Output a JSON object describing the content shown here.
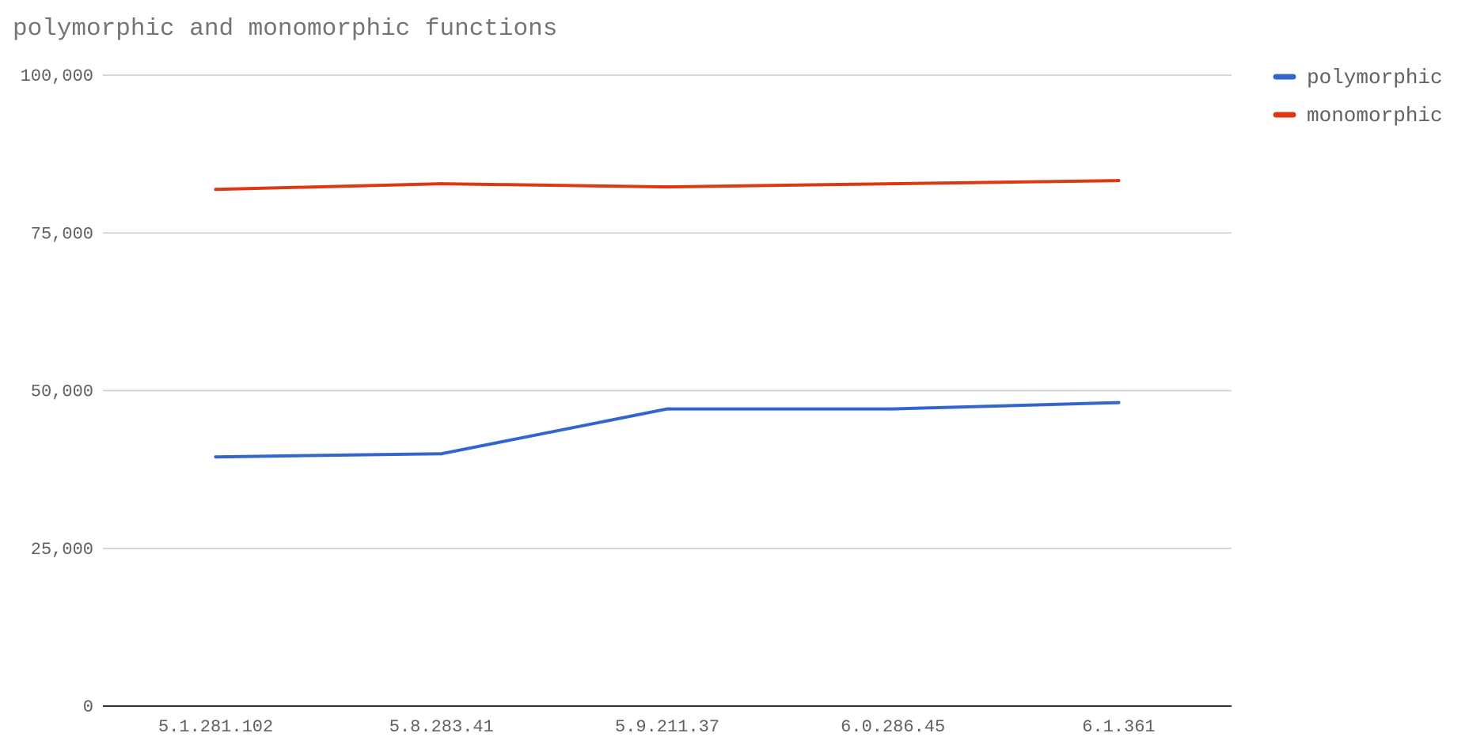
{
  "chart_data": {
    "type": "line",
    "title": "polymorphic and monomorphic functions",
    "categories": [
      "5.1.281.102",
      "5.8.283.41",
      "5.9.211.37",
      "6.0.286.45",
      "6.1.361"
    ],
    "series": [
      {
        "name": "polymorphic",
        "color": "#3366cc",
        "values": [
          39500,
          40000,
          47100,
          47100,
          48100
        ]
      },
      {
        "name": "monomorphic",
        "color": "#dc3912",
        "values": [
          81900,
          82800,
          82300,
          82800,
          83300
        ]
      }
    ],
    "ylim": [
      0,
      100000
    ],
    "yticks": [
      0,
      25000,
      50000,
      75000,
      100000
    ],
    "ytick_labels": [
      "0",
      "25,000",
      "50,000",
      "75,000",
      "100,000"
    ],
    "xlabel": "",
    "ylabel": "",
    "grid": true,
    "legend_position": "right"
  }
}
